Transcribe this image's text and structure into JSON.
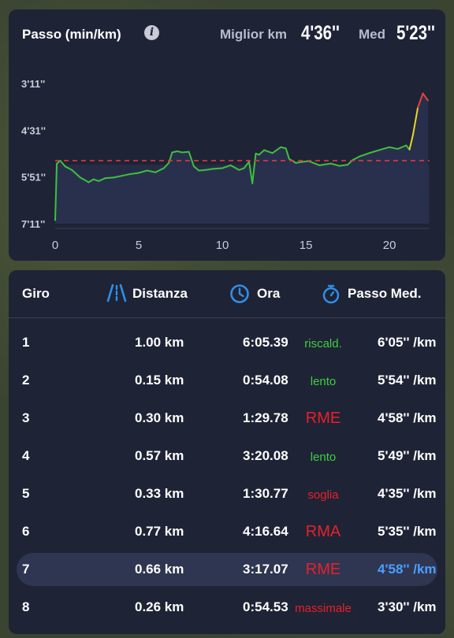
{
  "pace_card": {
    "title": "Passo (min/km)",
    "info_icon": "info-icon",
    "best_label": "Miglior km",
    "best_value": "4'36''",
    "avg_label": "Med",
    "avg_value": "5'23''"
  },
  "chart_data": {
    "type": "line",
    "title": "Passo (min/km)",
    "xlabel": "",
    "ylabel": "",
    "y_tick_labels": [
      "3'11''",
      "4'31''",
      "5'51''",
      "7'11''"
    ],
    "x_ticks": [
      0,
      5,
      10,
      15,
      20
    ],
    "x_tick_labels": [
      "0",
      "5",
      "10",
      "15",
      "20"
    ],
    "xlim": [
      0,
      22.4
    ],
    "ylim_seconds": [
      191,
      431
    ],
    "y_inverted": true,
    "reference_line": {
      "value_seconds": 323,
      "label": "Med 5'23''",
      "color": "#e0393e",
      "style": "dashed"
    },
    "colors": {
      "slow": "#3fbf3f",
      "mid": "#e8d52a",
      "fast": "#e8403a",
      "fill": "#2b3453"
    },
    "series": [
      {
        "x": [
          0.0,
          0.1,
          0.3,
          0.6,
          1.0,
          1.5,
          2.0,
          2.3,
          2.6,
          3.0,
          3.5,
          4.0,
          4.5,
          5.0,
          5.5,
          6.0,
          6.5,
          6.8,
          7.0,
          7.3,
          7.6,
          8.0,
          8.3,
          8.6,
          9.0,
          9.5,
          10.0,
          10.5,
          11.0,
          11.3,
          11.6,
          11.8,
          12.0,
          12.2,
          12.5,
          13.0,
          13.5,
          13.8,
          14.0,
          14.4,
          14.8,
          15.2,
          15.8,
          16.5,
          17.0,
          17.5,
          17.8,
          18.2,
          18.8,
          19.5,
          20.0,
          20.5,
          21.0,
          21.2,
          21.4,
          21.7,
          22.0,
          22.3
        ],
        "y_seconds": [
          425,
          328,
          323,
          333,
          339,
          352,
          360,
          355,
          358,
          353,
          352,
          349,
          346,
          344,
          340,
          343,
          336,
          327,
          309,
          307,
          309,
          308,
          333,
          340,
          339,
          337,
          336,
          331,
          339,
          336,
          325,
          362,
          311,
          313,
          305,
          310,
          300,
          302,
          320,
          327,
          325,
          324,
          331,
          328,
          332,
          330,
          322,
          316,
          310,
          304,
          300,
          303,
          297,
          304,
          280,
          232,
          208,
          220
        ]
      }
    ]
  },
  "laps": {
    "headers": {
      "lap": "Giro",
      "distance": "Distanza",
      "time": "Ora",
      "pace": "Passo Med."
    },
    "header_icons": [
      "road-icon",
      "clock-icon",
      "stopwatch-icon"
    ],
    "accent": "#2f8fe6",
    "rows": [
      {
        "lap": "1",
        "distance": "1.00 km",
        "time": "6:05.39",
        "zone": "riscald.",
        "zone_color": "#3fcf3f",
        "pace": "6'05'' /km"
      },
      {
        "lap": "2",
        "distance": "0.15 km",
        "time": "0:54.08",
        "zone": "lento",
        "zone_color": "#3fcf3f",
        "pace": "5'54'' /km"
      },
      {
        "lap": "3",
        "distance": "0.30 km",
        "time": "1:29.78",
        "zone": "RME",
        "zone_color": "#e8202a",
        "pace": "4'58'' /km"
      },
      {
        "lap": "4",
        "distance": "0.57 km",
        "time": "3:20.08",
        "zone": "lento",
        "zone_color": "#3fcf3f",
        "pace": "5'49'' /km"
      },
      {
        "lap": "5",
        "distance": "0.33 km",
        "time": "1:30.77",
        "zone": "soglia",
        "zone_color": "#e8202a",
        "pace": "4'35'' /km"
      },
      {
        "lap": "6",
        "distance": "0.77 km",
        "time": "4:16.64",
        "zone": "RMA",
        "zone_color": "#e8202a",
        "pace": "5'35'' /km"
      },
      {
        "lap": "7",
        "distance": "0.66 km",
        "time": "3:17.07",
        "zone": "RME",
        "zone_color": "#e8202a",
        "pace": "4'58'' /km"
      },
      {
        "lap": "8",
        "distance": "0.26 km",
        "time": "0:54.53",
        "zone": "massimale",
        "zone_color": "#e8202a",
        "pace": "3'30'' /km"
      }
    ],
    "highlighted_lap": "7"
  }
}
